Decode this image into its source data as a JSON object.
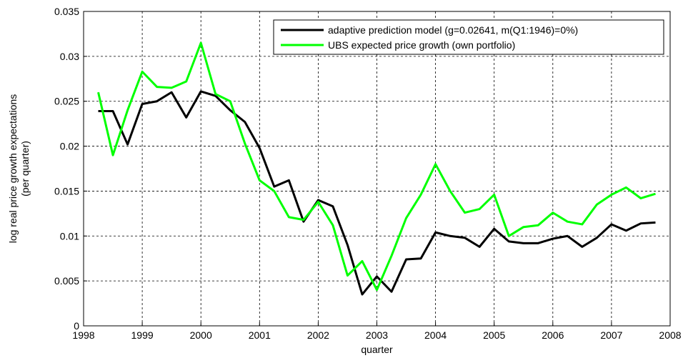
{
  "chart_data": {
    "type": "line",
    "xlabel": "quarter",
    "ylabel": [
      "log real price growth expectations",
      "(per quarter)"
    ],
    "x": [
      1998.25,
      1998.5,
      1998.75,
      1999,
      1999.25,
      1999.5,
      1999.75,
      2000,
      2000.25,
      2000.5,
      2000.75,
      2001,
      2001.25,
      2001.5,
      2001.75,
      2002,
      2002.25,
      2002.5,
      2002.75,
      2003,
      2003.25,
      2003.5,
      2003.75,
      2004,
      2004.25,
      2004.5,
      2004.75,
      2005,
      2005.25,
      2005.5,
      2005.75,
      2006,
      2006.25,
      2006.5,
      2006.75,
      2007,
      2007.25,
      2007.5,
      2007.75
    ],
    "series": [
      {
        "name": "adaptive prediction model (g=0.02641, m(Q1:1946)=0%)",
        "color": "#000000",
        "values": [
          0.0239,
          0.0239,
          0.0202,
          0.0247,
          0.025,
          0.026,
          0.0232,
          0.0261,
          0.0256,
          0.024,
          0.0227,
          0.0198,
          0.0155,
          0.0162,
          0.0116,
          0.014,
          0.0133,
          0.009,
          0.0035,
          0.0055,
          0.0038,
          0.0074,
          0.0075,
          0.0104,
          0.01,
          0.0098,
          0.0088,
          0.0108,
          0.0094,
          0.0092,
          0.0092,
          0.0097,
          0.01,
          0.0088,
          0.0098,
          0.0113,
          0.0106,
          0.0114,
          0.0115
        ]
      },
      {
        "name": "UBS expected price growth (own portfolio)",
        "color": "#00ff00",
        "values": [
          0.026,
          0.019,
          0.024,
          0.0283,
          0.0266,
          0.0265,
          0.0272,
          0.0315,
          0.0258,
          0.025,
          0.0203,
          0.0162,
          0.015,
          0.0121,
          0.0118,
          0.0138,
          0.0112,
          0.0056,
          0.0072,
          0.004,
          0.0078,
          0.012,
          0.0146,
          0.018,
          0.015,
          0.0126,
          0.013,
          0.0146,
          0.01,
          0.011,
          0.0112,
          0.0126,
          0.0116,
          0.0113,
          0.0135,
          0.0146,
          0.0154,
          0.0142,
          0.0147
        ]
      }
    ],
    "xlim": [
      1998,
      2008
    ],
    "xticks": [
      1998,
      1999,
      2000,
      2001,
      2002,
      2003,
      2004,
      2005,
      2006,
      2007,
      2008
    ],
    "ylim": [
      0,
      0.035
    ],
    "yticks": [
      0,
      0.005,
      0.01,
      0.015,
      0.02,
      0.025,
      0.03,
      0.035
    ],
    "grid": true,
    "legend": "top-right"
  }
}
